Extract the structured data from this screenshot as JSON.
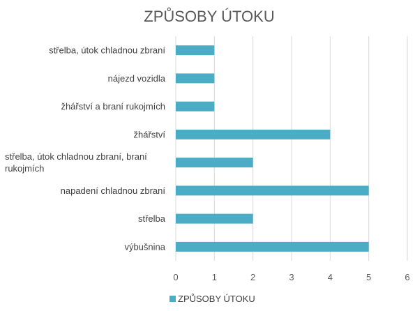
{
  "chart_data": {
    "type": "bar",
    "orientation": "horizontal",
    "title": "ZPŮSOBY ÚTOKU",
    "categories": [
      "střelba, útok chladnou zbraní",
      "nájezd vozidla",
      "žhářství a braní rukojmích",
      "žhářství",
      "střelba, útok chladnou zbraní, braní rukojmích",
      "napadení chladnou zbraní",
      "střelba",
      "výbušnina"
    ],
    "series": [
      {
        "name": "ZPŮSOBY ÚTOKU",
        "color": "#4bacc6",
        "values": [
          1,
          1,
          1,
          4,
          2,
          5,
          2,
          5
        ]
      }
    ],
    "xlim": [
      0,
      6
    ],
    "xticks": [
      "0",
      "1",
      "2",
      "3",
      "4",
      "5",
      "6"
    ],
    "grid": "vertical",
    "legend": "bottom"
  }
}
